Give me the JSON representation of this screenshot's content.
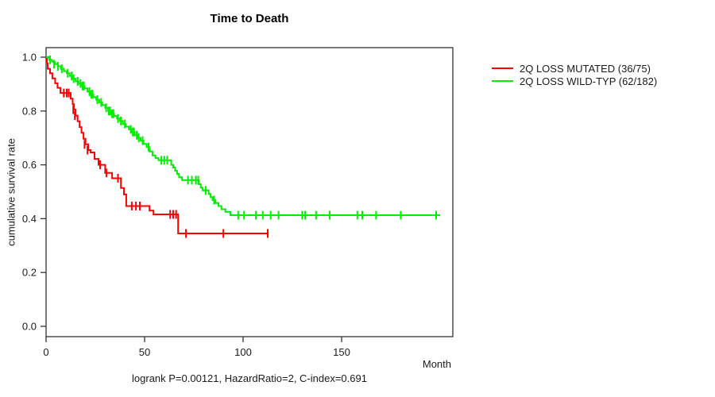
{
  "chart_data": {
    "type": "line",
    "subtype": "kaplan-meier-step-survival",
    "title": "Time to Death",
    "xlabel": "Month",
    "ylabel": "cumulative survival rate",
    "footer": "logrank P=0.00121, HazardRatio=2, C-index=0.691",
    "xlim": [
      0,
      206
    ],
    "ylim": [
      0.0,
      1.04
    ],
    "xticks": [
      0,
      50,
      100,
      150
    ],
    "ytick_labels": [
      "0.0",
      "0.2",
      "0.4",
      "0.6",
      "0.8",
      "1.0"
    ],
    "grid": false,
    "legend_position": "right-outside",
    "axis_color": "#333333",
    "series": [
      {
        "name": "2Q LOSS MUTATED (36/75)",
        "color": "#ff0000",
        "end_month": 113,
        "steps": [
          [
            0,
            1.0
          ],
          [
            0.4,
            0.978
          ],
          [
            0.8,
            0.957
          ],
          [
            2,
            0.94
          ],
          [
            3.2,
            0.921
          ],
          [
            4.6,
            0.903
          ],
          [
            5.8,
            0.886
          ],
          [
            7.3,
            0.867
          ],
          [
            12.5,
            0.846
          ],
          [
            13.5,
            0.825
          ],
          [
            14.2,
            0.805
          ],
          [
            15,
            0.783
          ],
          [
            16,
            0.762
          ],
          [
            17,
            0.74
          ],
          [
            18,
            0.719
          ],
          [
            19,
            0.697
          ],
          [
            20,
            0.676
          ],
          [
            21.5,
            0.655
          ],
          [
            22.6,
            0.646
          ],
          [
            24.6,
            0.622
          ],
          [
            26.6,
            0.6
          ],
          [
            30,
            0.57
          ],
          [
            33.5,
            0.55
          ],
          [
            38,
            0.514
          ],
          [
            39.5,
            0.49
          ],
          [
            40.7,
            0.447
          ],
          [
            52.5,
            0.43
          ],
          [
            54.5,
            0.416
          ],
          [
            67,
            0.345
          ]
        ],
        "censor_marks": [
          [
            9,
            0.867
          ],
          [
            10.5,
            0.867
          ],
          [
            11.5,
            0.867
          ],
          [
            13.8,
            0.805
          ],
          [
            14.6,
            0.783
          ],
          [
            19.5,
            0.676
          ],
          [
            21,
            0.655
          ],
          [
            27.4,
            0.6
          ],
          [
            30.6,
            0.57
          ],
          [
            36.5,
            0.55
          ],
          [
            43.5,
            0.447
          ],
          [
            45.6,
            0.447
          ],
          [
            47.6,
            0.447
          ],
          [
            63,
            0.416
          ],
          [
            64.5,
            0.416
          ],
          [
            66,
            0.416
          ],
          [
            71,
            0.345
          ],
          [
            90,
            0.345
          ],
          [
            112.5,
            0.345
          ]
        ]
      },
      {
        "name": "2Q LOSS WILD-TYP (62/182)",
        "color": "#00ee00",
        "end_month": 200,
        "steps": [
          [
            0,
            1.0
          ],
          [
            1.5,
            0.99
          ],
          [
            3,
            0.983
          ],
          [
            4.5,
            0.974
          ],
          [
            6,
            0.966
          ],
          [
            7.5,
            0.957
          ],
          [
            9,
            0.948
          ],
          [
            10.5,
            0.94
          ],
          [
            12,
            0.93
          ],
          [
            13.5,
            0.92
          ],
          [
            15,
            0.91
          ],
          [
            16.5,
            0.902
          ],
          [
            18,
            0.893
          ],
          [
            19.5,
            0.884
          ],
          [
            21,
            0.872
          ],
          [
            22.5,
            0.862
          ],
          [
            24,
            0.852
          ],
          [
            25.5,
            0.842
          ],
          [
            27,
            0.832
          ],
          [
            28.5,
            0.822
          ],
          [
            30,
            0.812
          ],
          [
            31.5,
            0.8
          ],
          [
            33,
            0.79
          ],
          [
            34.5,
            0.782
          ],
          [
            36,
            0.772
          ],
          [
            37.5,
            0.763
          ],
          [
            39,
            0.752
          ],
          [
            40.5,
            0.742
          ],
          [
            42,
            0.732
          ],
          [
            43.5,
            0.722
          ],
          [
            45,
            0.71
          ],
          [
            46.5,
            0.7
          ],
          [
            48,
            0.69
          ],
          [
            49.5,
            0.678
          ],
          [
            51,
            0.666
          ],
          [
            52.5,
            0.65
          ],
          [
            54,
            0.635
          ],
          [
            55.5,
            0.625
          ],
          [
            57,
            0.617
          ],
          [
            63.5,
            0.6
          ],
          [
            64.5,
            0.59
          ],
          [
            65.5,
            0.578
          ],
          [
            66.5,
            0.566
          ],
          [
            67.5,
            0.554
          ],
          [
            69,
            0.543
          ],
          [
            77.5,
            0.528
          ],
          [
            78.5,
            0.515
          ],
          [
            79.5,
            0.505
          ],
          [
            82.5,
            0.492
          ],
          [
            83.5,
            0.48
          ],
          [
            84.5,
            0.469
          ],
          [
            86,
            0.458
          ],
          [
            87.5,
            0.447
          ],
          [
            89,
            0.435
          ],
          [
            91,
            0.425
          ],
          [
            93.5,
            0.413
          ]
        ],
        "censor_marks": [
          [
            2,
            0.99
          ],
          [
            4,
            0.974
          ],
          [
            6,
            0.966
          ],
          [
            8,
            0.957
          ],
          [
            11,
            0.94
          ],
          [
            13,
            0.93
          ],
          [
            14,
            0.92
          ],
          [
            16,
            0.91
          ],
          [
            17.5,
            0.902
          ],
          [
            18.5,
            0.893
          ],
          [
            19.2,
            0.893
          ],
          [
            22,
            0.872
          ],
          [
            23,
            0.862
          ],
          [
            23.6,
            0.862
          ],
          [
            26,
            0.842
          ],
          [
            28,
            0.832
          ],
          [
            30.5,
            0.812
          ],
          [
            31.8,
            0.8
          ],
          [
            32.4,
            0.8
          ],
          [
            33.5,
            0.79
          ],
          [
            34.2,
            0.79
          ],
          [
            36.5,
            0.772
          ],
          [
            38,
            0.763
          ],
          [
            40,
            0.752
          ],
          [
            43,
            0.732
          ],
          [
            44,
            0.722
          ],
          [
            44.6,
            0.722
          ],
          [
            46,
            0.71
          ],
          [
            47,
            0.7
          ],
          [
            49,
            0.69
          ],
          [
            52,
            0.666
          ],
          [
            58.5,
            0.617
          ],
          [
            60,
            0.617
          ],
          [
            61.5,
            0.617
          ],
          [
            72,
            0.543
          ],
          [
            74,
            0.543
          ],
          [
            76,
            0.543
          ],
          [
            77.2,
            0.543
          ],
          [
            81,
            0.505
          ],
          [
            85.3,
            0.469
          ],
          [
            97.5,
            0.413
          ],
          [
            100.5,
            0.413
          ],
          [
            106.5,
            0.413
          ],
          [
            110,
            0.413
          ],
          [
            114,
            0.413
          ],
          [
            118,
            0.413
          ],
          [
            130,
            0.413
          ],
          [
            131.5,
            0.413
          ],
          [
            137,
            0.413
          ],
          [
            144,
            0.413
          ],
          [
            158,
            0.413
          ],
          [
            160.5,
            0.413
          ],
          [
            167.5,
            0.413
          ],
          [
            180,
            0.413
          ],
          [
            198,
            0.413
          ]
        ]
      }
    ]
  }
}
